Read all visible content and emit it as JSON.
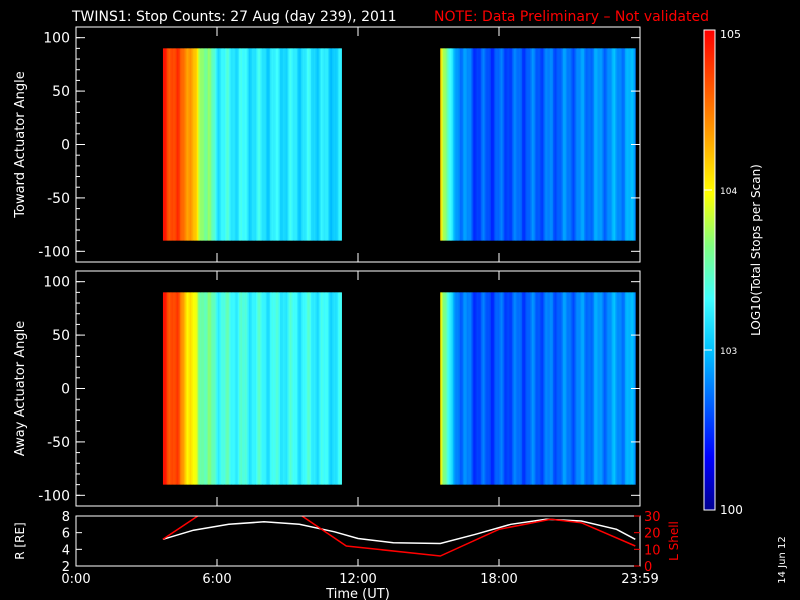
{
  "title": {
    "main": "TWINS1: Stop Counts: 27 Aug (day 239), 2011",
    "note": "NOTE: Data Preliminary – Not validated",
    "note_color": "#ff0000"
  },
  "date_stamp": "14 Jun 12",
  "colorbar": {
    "label": "LOG10(Total Stops per Scan)",
    "ticks": [
      "105",
      "104",
      "103",
      "100"
    ],
    "scale": "log",
    "range": [
      100,
      100000
    ],
    "colors": [
      "#000090",
      "#0000ff",
      "#0060ff",
      "#00c0ff",
      "#40ffff",
      "#80ff80",
      "#ffff00",
      "#ffa000",
      "#ff5000",
      "#ff0000"
    ]
  },
  "chart_data": [
    {
      "type": "heatmap",
      "name": "toward",
      "ylabel": "Toward Actuator Angle",
      "ylim": [
        -110,
        110
      ],
      "yticks": [
        "100",
        "50",
        "0",
        "-50",
        "-100"
      ],
      "xlim": [
        0,
        24
      ],
      "data_spans": [
        [
          3.7,
          11.3
        ],
        [
          15.5,
          23.8
        ]
      ],
      "angle_range": [
        -90,
        90
      ],
      "level_profile": [
        {
          "t": 3.7,
          "log": 4.85
        },
        {
          "t": 4.2,
          "log": 4.7
        },
        {
          "t": 4.7,
          "log": 4.5
        },
        {
          "t": 5.2,
          "log": 3.9
        },
        {
          "t": 6.0,
          "log": 3.3
        },
        {
          "t": 8.0,
          "log": 3.2
        },
        {
          "t": 10.0,
          "log": 3.2
        },
        {
          "t": 11.3,
          "log": 3.1
        },
        {
          "t": 15.5,
          "log": 4.2
        },
        {
          "t": 16.0,
          "log": 3.0
        },
        {
          "t": 17.0,
          "log": 2.6
        },
        {
          "t": 20.0,
          "log": 2.7
        },
        {
          "t": 22.0,
          "log": 2.8
        },
        {
          "t": 23.8,
          "log": 2.9
        }
      ]
    },
    {
      "type": "heatmap",
      "name": "away",
      "ylabel": "Away Actuator Angle",
      "ylim": [
        -110,
        110
      ],
      "yticks": [
        "100",
        "50",
        "0",
        "-50",
        "-100"
      ],
      "xlim": [
        0,
        24
      ],
      "data_spans": [
        [
          3.7,
          11.3
        ],
        [
          15.5,
          23.8
        ]
      ],
      "angle_range": [
        -90,
        90
      ],
      "level_profile": [
        {
          "t": 3.7,
          "log": 4.85
        },
        {
          "t": 4.2,
          "log": 4.7
        },
        {
          "t": 4.7,
          "log": 4.2
        },
        {
          "t": 5.2,
          "log": 3.7
        },
        {
          "t": 6.0,
          "log": 3.4
        },
        {
          "t": 8.0,
          "log": 3.3
        },
        {
          "t": 10.0,
          "log": 3.3
        },
        {
          "t": 11.3,
          "log": 3.2
        },
        {
          "t": 15.5,
          "log": 4.1
        },
        {
          "t": 16.0,
          "log": 2.9
        },
        {
          "t": 17.0,
          "log": 2.6
        },
        {
          "t": 20.0,
          "log": 2.7
        },
        {
          "t": 22.0,
          "log": 2.8
        },
        {
          "t": 23.8,
          "log": 2.9
        }
      ]
    },
    {
      "type": "line",
      "name": "orbit",
      "ylabel": "R [RE]",
      "ylim": [
        2,
        8
      ],
      "yticks": [
        "8",
        "6",
        "4",
        "2"
      ],
      "y2label": "L Shell",
      "y2lim": [
        0,
        30
      ],
      "y2ticks": [
        "30",
        "20",
        "10",
        "0"
      ],
      "y2color": "#ff0000",
      "xlim": [
        0,
        24
      ],
      "xticks": [
        "0:00",
        "6:00",
        "12:00",
        "18:00",
        "23:59"
      ],
      "xtick_values": [
        0,
        6,
        12,
        18,
        24
      ],
      "xlabel": "Time (UT)",
      "series": [
        {
          "axis": "left",
          "color": "#ffffff",
          "x": [
            3.7,
            5,
            6.5,
            8,
            9.5,
            11,
            12,
            13.5,
            15.5,
            17,
            18.5,
            20,
            21.5,
            23,
            23.8
          ],
          "y": [
            5.2,
            6.3,
            7.0,
            7.3,
            7.0,
            6.1,
            5.3,
            4.8,
            4.7,
            5.8,
            7.0,
            7.6,
            7.4,
            6.4,
            5.2
          ]
        },
        {
          "axis": "right",
          "color": "#ff0000",
          "x": [
            3.7,
            5.5,
            9.3,
            11.5,
            15.5,
            18.0,
            20.2,
            21.5,
            23.8
          ],
          "y": [
            16,
            33,
            33,
            12,
            6,
            22,
            28,
            26,
            12
          ]
        }
      ]
    }
  ]
}
